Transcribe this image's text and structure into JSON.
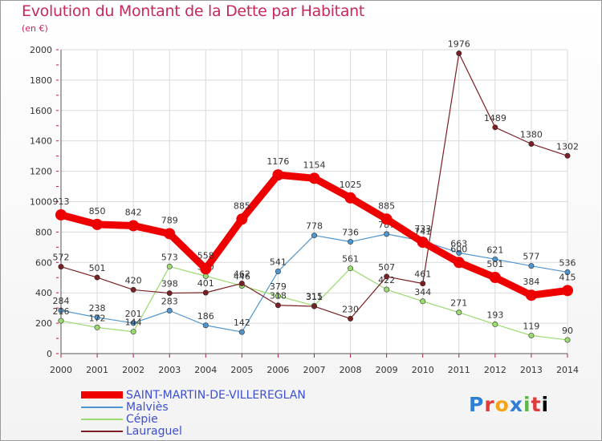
{
  "title": "Evolution du Montant de la Dette par Habitant",
  "unit_label": "(en €)",
  "logo": {
    "text": "Proxiti",
    "letters": [
      "P",
      "r",
      "o",
      "x",
      "i",
      "t",
      "i"
    ]
  },
  "chart_data": {
    "type": "line",
    "title": "Evolution du Montant de la Dette par Habitant",
    "subtitle": "(en €)",
    "x": [
      "2000",
      "2001",
      "2002",
      "2003",
      "2004",
      "2005",
      "2006",
      "2007",
      "2008",
      "2009",
      "2010",
      "2011",
      "2012",
      "2013",
      "2014"
    ],
    "ylim": [
      0,
      2000
    ],
    "yticks": [
      0,
      200,
      400,
      600,
      800,
      1000,
      1200,
      1400,
      1600,
      1800,
      2000
    ],
    "grid": true,
    "legend_position": "bottom-left",
    "series": [
      {
        "name": "SAINT-MARTIN-DE-VILLEREGLAN",
        "color": "#ee0000",
        "values": [
          913,
          850,
          842,
          789,
          558,
          885,
          1176,
          1154,
          1025,
          885,
          733,
          600,
          501,
          384,
          415
        ]
      },
      {
        "name": "Malviès",
        "color": "#4f95cf",
        "values": [
          284,
          238,
          201,
          283,
          186,
          142,
          541,
          778,
          736,
          787,
          741,
          663,
          621,
          577,
          536
        ]
      },
      {
        "name": "Cépie",
        "color": "#9ada6e",
        "values": [
          216,
          172,
          144,
          573,
          510,
          446,
          379,
          315,
          561,
          422,
          344,
          271,
          193,
          119,
          90
        ]
      },
      {
        "name": "Lauraguel",
        "color": "#7a1f24",
        "values": [
          572,
          501,
          420,
          398,
          401,
          462,
          318,
          311,
          230,
          507,
          461,
          1976,
          1489,
          1380,
          1302
        ]
      }
    ]
  }
}
